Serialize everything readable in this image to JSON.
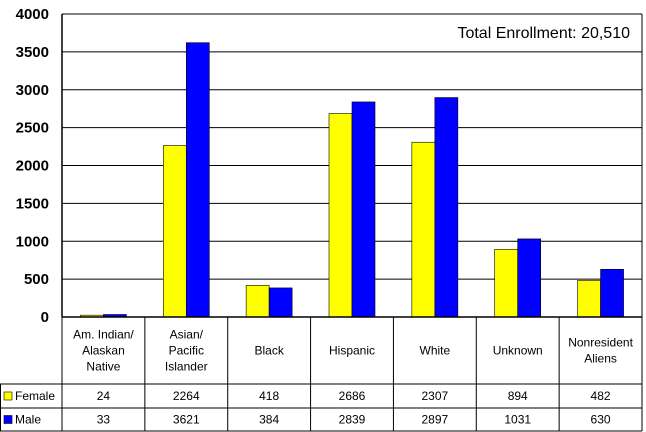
{
  "chart_data": {
    "type": "bar",
    "annotation": "Total Enrollment: 20,510",
    "categories": [
      [
        "Am. Indian/",
        "Alaskan",
        "Native"
      ],
      [
        "Asian/",
        "Pacific",
        "Islander"
      ],
      [
        "Black"
      ],
      [
        "Hispanic"
      ],
      [
        "White"
      ],
      [
        "Unknown"
      ],
      [
        "Nonresident",
        "Aliens"
      ]
    ],
    "series": [
      {
        "name": "Female",
        "color": "#ffff00",
        "values": [
          24,
          2264,
          418,
          2686,
          2307,
          894,
          482
        ]
      },
      {
        "name": "Male",
        "color": "#0000ff",
        "values": [
          33,
          3621,
          384,
          2839,
          2897,
          1031,
          630
        ]
      }
    ],
    "ylim": [
      0,
      4000
    ],
    "yticks": [
      0,
      500,
      1000,
      1500,
      2000,
      2500,
      3000,
      3500,
      4000
    ],
    "grid": true,
    "data_table": true
  }
}
